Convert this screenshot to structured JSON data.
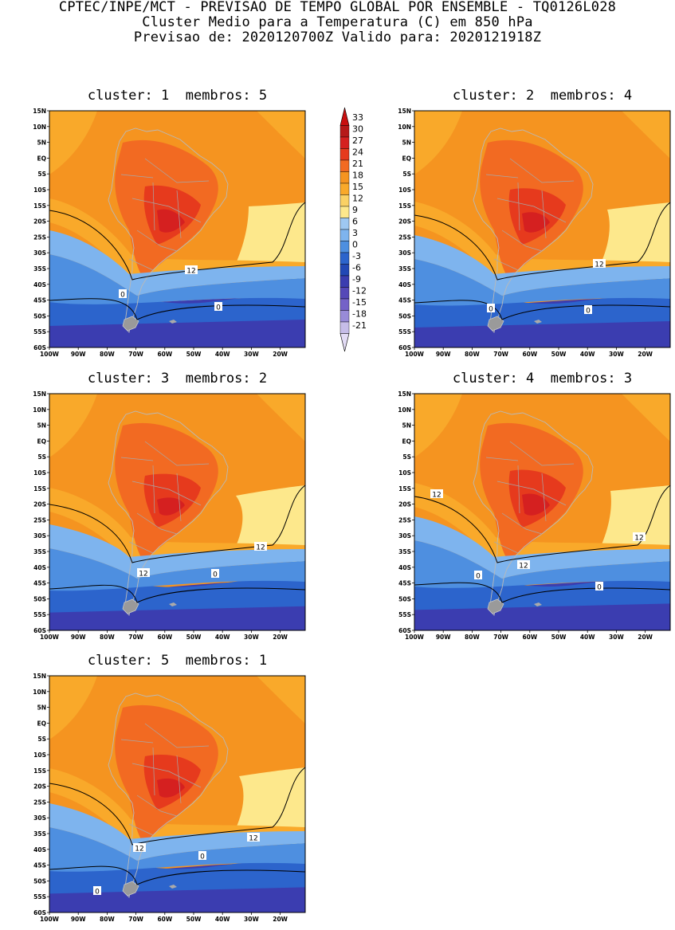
{
  "header": {
    "line1": "CPTEC/INPE/MCT - PREVISAO DE TEMPO GLOBAL POR ENSEMBLE - TQ0126L028",
    "line2": "Cluster Medio para a Temperatura (C) em 850 hPa",
    "line3": "Previsao de: 2020120700Z   Valido para: 2020121918Z"
  },
  "axes": {
    "lat_labels": [
      "15N",
      "10N",
      "5N",
      "EQ",
      "5S",
      "10S",
      "15S",
      "20S",
      "25S",
      "30S",
      "35S",
      "40S",
      "45S",
      "50S",
      "55S",
      "60S"
    ],
    "lon_labels": [
      "100W",
      "90W",
      "80W",
      "70W",
      "60W",
      "50W",
      "40W",
      "30W",
      "20W"
    ]
  },
  "colorbar": {
    "labels": [
      "33",
      "30",
      "27",
      "24",
      "21",
      "18",
      "15",
      "12",
      "9",
      "6",
      "3",
      "0",
      "-3",
      "-6",
      "-9",
      "-12",
      "-15",
      "-18",
      "-21"
    ],
    "colors": [
      "#c91010",
      "#b61919",
      "#d52020",
      "#e63a1d",
      "#f26a22",
      "#f59420",
      "#f9a92a",
      "#fad165",
      "#fde88c",
      "#9ec8f2",
      "#7eb4ee",
      "#4e8fe0",
      "#2c64cc",
      "#2248b5",
      "#3b3db0",
      "#5548b8",
      "#7462c8",
      "#988bd8",
      "#c6bde8",
      "#e3dcf5"
    ]
  },
  "panels": [
    {
      "cluster": "1",
      "members": "5",
      "title": "cluster: 1  membros: 5",
      "labels": [
        "12",
        "0",
        "0"
      ]
    },
    {
      "cluster": "2",
      "members": "4",
      "title": "cluster: 2  membros: 4",
      "labels": [
        "12",
        "0",
        "0"
      ]
    },
    {
      "cluster": "3",
      "members": "2",
      "title": "cluster: 3  membros: 2",
      "labels": [
        "12",
        "12",
        "0"
      ]
    },
    {
      "cluster": "4",
      "members": "3",
      "title": "cluster: 4  membros: 3",
      "labels": [
        "12",
        "12",
        "12",
        "0",
        "0"
      ]
    },
    {
      "cluster": "5",
      "members": "1",
      "title": "cluster: 5  membros: 1",
      "labels": [
        "12",
        "12",
        "0",
        "0"
      ]
    }
  ]
}
